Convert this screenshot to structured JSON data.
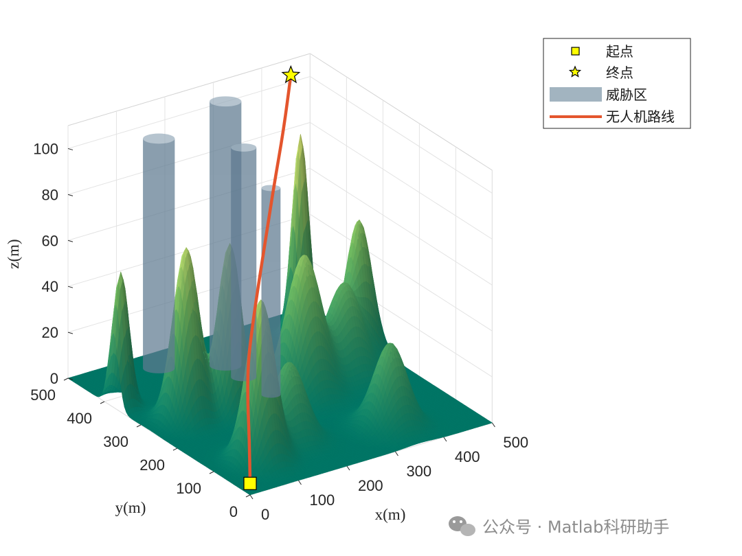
{
  "chart_data": {
    "type": "surface3d",
    "xlabel": "x(m)",
    "ylabel": "y(m)",
    "zlabel": "z(m)",
    "xlim": [
      0,
      500
    ],
    "ylim": [
      0,
      500
    ],
    "zlim": [
      0,
      110
    ],
    "x_ticks": [
      "0",
      "100",
      "200",
      "300",
      "400",
      "500"
    ],
    "y_ticks": [
      "0",
      "100",
      "200",
      "300",
      "400",
      "500"
    ],
    "z_ticks": [
      "0",
      "20",
      "40",
      "60",
      "80",
      "100"
    ],
    "grid": true,
    "legend_placement": "top-right outside",
    "legend": {
      "start": "起点",
      "end": "终点",
      "threat": "威胁区",
      "route": "无人机路线"
    },
    "terrain_peaks": [
      {
        "x": 15,
        "y": 375,
        "h": 58,
        "s": 14
      },
      {
        "x": 75,
        "y": 275,
        "h": 75,
        "s": 22
      },
      {
        "x": 150,
        "y": 255,
        "h": 74,
        "s": 20
      },
      {
        "x": 90,
        "y": 90,
        "h": 70,
        "s": 24
      },
      {
        "x": 300,
        "y": 250,
        "h": 60,
        "s": 30
      },
      {
        "x": 395,
        "y": 265,
        "h": 40,
        "s": 30
      },
      {
        "x": 420,
        "y": 420,
        "h": 88,
        "s": 14
      },
      {
        "x": 455,
        "y": 305,
        "h": 58,
        "s": 22
      },
      {
        "x": 350,
        "y": 80,
        "h": 36,
        "s": 28
      },
      {
        "x": 175,
        "y": 125,
        "h": 34,
        "s": 28
      }
    ],
    "threat_zones": [
      {
        "x": 150,
        "y": 450,
        "r": 25,
        "h": 100
      },
      {
        "x": 250,
        "y": 400,
        "r": 25,
        "h": 115
      },
      {
        "x": 250,
        "y": 350,
        "r": 20,
        "h": 100
      },
      {
        "x": 250,
        "y": 275,
        "r": 15,
        "h": 90
      }
    ],
    "start_point": {
      "x": 0,
      "y": 0,
      "z": 5
    },
    "end_point": {
      "x": 400,
      "y": 420,
      "z": 115
    },
    "route": [
      {
        "x": 0,
        "y": 0,
        "z": 5
      },
      {
        "x": 25,
        "y": 35,
        "z": 18
      },
      {
        "x": 55,
        "y": 80,
        "z": 30
      },
      {
        "x": 90,
        "y": 125,
        "z": 40
      },
      {
        "x": 140,
        "y": 180,
        "z": 46
      },
      {
        "x": 200,
        "y": 245,
        "z": 52
      },
      {
        "x": 260,
        "y": 305,
        "z": 62
      },
      {
        "x": 320,
        "y": 360,
        "z": 78
      },
      {
        "x": 370,
        "y": 400,
        "z": 95
      },
      {
        "x": 400,
        "y": 420,
        "z": 115
      }
    ]
  },
  "colors": {
    "route": "#e4552d",
    "threat": "#5e7a90",
    "threat_legend": "#a2b4c0",
    "start_fill": "#ffff00",
    "end_fill": "#ffff00",
    "surface_low": "#00806e",
    "surface_high": "#f2f97a"
  },
  "watermark": {
    "text": "公众号 · Matlab科研助手",
    "icon": "wechat-icon"
  }
}
